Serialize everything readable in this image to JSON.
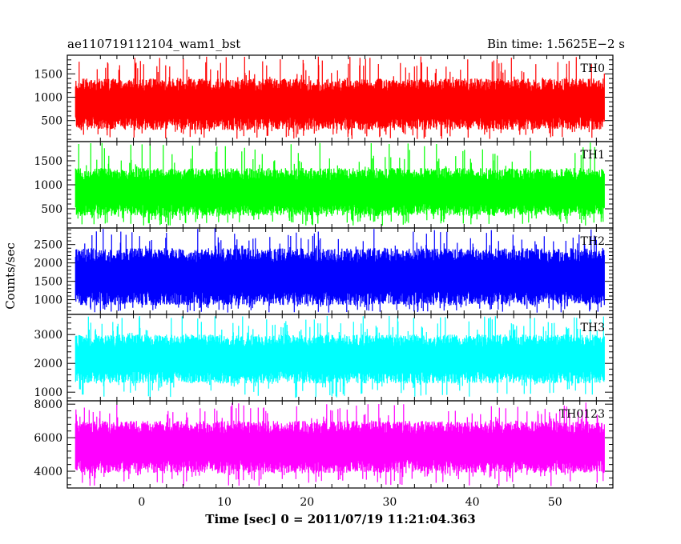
{
  "chart_data": {
    "type": "line",
    "title_left": "ae110719112104_wam1_bst",
    "title_right": "Bin time: 1.5625E−2 s",
    "xlabel": "Time [sec] 0 = 2011/07/19 11:21:04.363",
    "ylabel": "Counts/sec",
    "xlim": [
      -9,
      57
    ],
    "data_x_range": [
      -8.0,
      56.0
    ],
    "x_ticks": [
      0,
      10,
      20,
      30,
      40,
      50
    ],
    "x_tick_labels": [
      "0",
      "10",
      "20",
      "30",
      "40",
      "50"
    ],
    "grid": false,
    "panels": [
      {
        "name": "TH0",
        "color": "#ff0000",
        "ylim": [
          50,
          1900
        ],
        "y_ticks": [
          500,
          1000,
          1500
        ],
        "y_tick_labels": [
          "500",
          "1000",
          "1500"
        ],
        "band": [
          300,
          1400
        ],
        "spike_range": [
          100,
          1880
        ]
      },
      {
        "name": "TH1",
        "color": "#00ff00",
        "ylim": [
          100,
          1900
        ],
        "y_ticks": [
          500,
          1000,
          1500
        ],
        "y_tick_labels": [
          "500",
          "1000",
          "1500"
        ],
        "band": [
          350,
          1350
        ],
        "spike_range": [
          150,
          1880
        ]
      },
      {
        "name": "TH2",
        "color": "#0000ff",
        "ylim": [
          600,
          2950
        ],
        "y_ticks": [
          1000,
          1500,
          2000,
          2500
        ],
        "y_tick_labels": [
          "1000",
          "1500",
          "2000",
          "2500"
        ],
        "band": [
          850,
          2400
        ],
        "spike_range": [
          650,
          2950
        ]
      },
      {
        "name": "TH3",
        "color": "#00ffff",
        "ylim": [
          700,
          3700
        ],
        "y_ticks": [
          1000,
          2000,
          3000
        ],
        "y_tick_labels": [
          "1000",
          "2000",
          "3000"
        ],
        "band": [
          1300,
          3000
        ],
        "spike_range": [
          800,
          3650
        ]
      },
      {
        "name": "TH0123",
        "color": "#ff00ff",
        "ylim": [
          3000,
          8200
        ],
        "y_ticks": [
          4000,
          6000,
          8000
        ],
        "y_tick_labels": [
          "4000",
          "6000",
          "8000"
        ],
        "band": [
          3900,
          7000
        ],
        "spike_range": [
          3100,
          8100
        ]
      }
    ]
  }
}
